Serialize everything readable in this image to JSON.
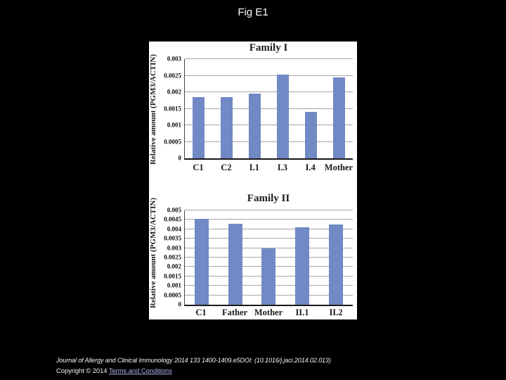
{
  "slide": {
    "title": "Fig E1"
  },
  "chart_data": [
    {
      "type": "bar",
      "title": "Family I",
      "ylabel": "Relative amount (PGM3/ACTIN)",
      "categories": [
        "C1",
        "C2",
        "I.1",
        "I.3",
        "I.4",
        "Mother"
      ],
      "values": [
        0.00185,
        0.00186,
        0.00196,
        0.00254,
        0.0014,
        0.00245
      ],
      "ylim": [
        0,
        0.003
      ],
      "yticks": [
        "0",
        "0.0005",
        "0.001",
        "0.0015",
        "0.002",
        "0.0025",
        "0.003"
      ],
      "grid": true,
      "legend": false,
      "bar_color": "#7189c4"
    },
    {
      "type": "bar",
      "title": "Family II",
      "ylabel": "Relative amount (PGM3/ACTIN)",
      "categories": [
        "C1",
        "Father",
        "Mother",
        "II.1",
        "II.2"
      ],
      "values": [
        0.00455,
        0.0043,
        0.003,
        0.0041,
        0.00424
      ],
      "ylim": [
        0,
        0.005
      ],
      "yticks": [
        "0",
        "0.0005",
        "0.001",
        "0.0015",
        "0.002",
        "0.0025",
        "0.003",
        "0.0035",
        "0.004",
        "0.0045",
        "0.005"
      ],
      "grid": true,
      "legend": false,
      "bar_color": "#7189c4"
    }
  ],
  "footer": {
    "citation_journal": "Journal of Allergy and Clinical Immunology",
    "citation_rest": " 2014 133 1400-1409.e5DOI: (10.1016/j.jaci.2014.02.013)",
    "copyright_text": "Copyright © 2014 ",
    "terms_link": "Terms and Conditions"
  },
  "colors": {
    "background": "#000000",
    "panel": "#ffffff",
    "bar": "#7189c4",
    "gridline": "#a6a6a6",
    "axis": "#1a1a1a",
    "link": "#a9b2e8",
    "text_light": "#f5f5fa"
  }
}
